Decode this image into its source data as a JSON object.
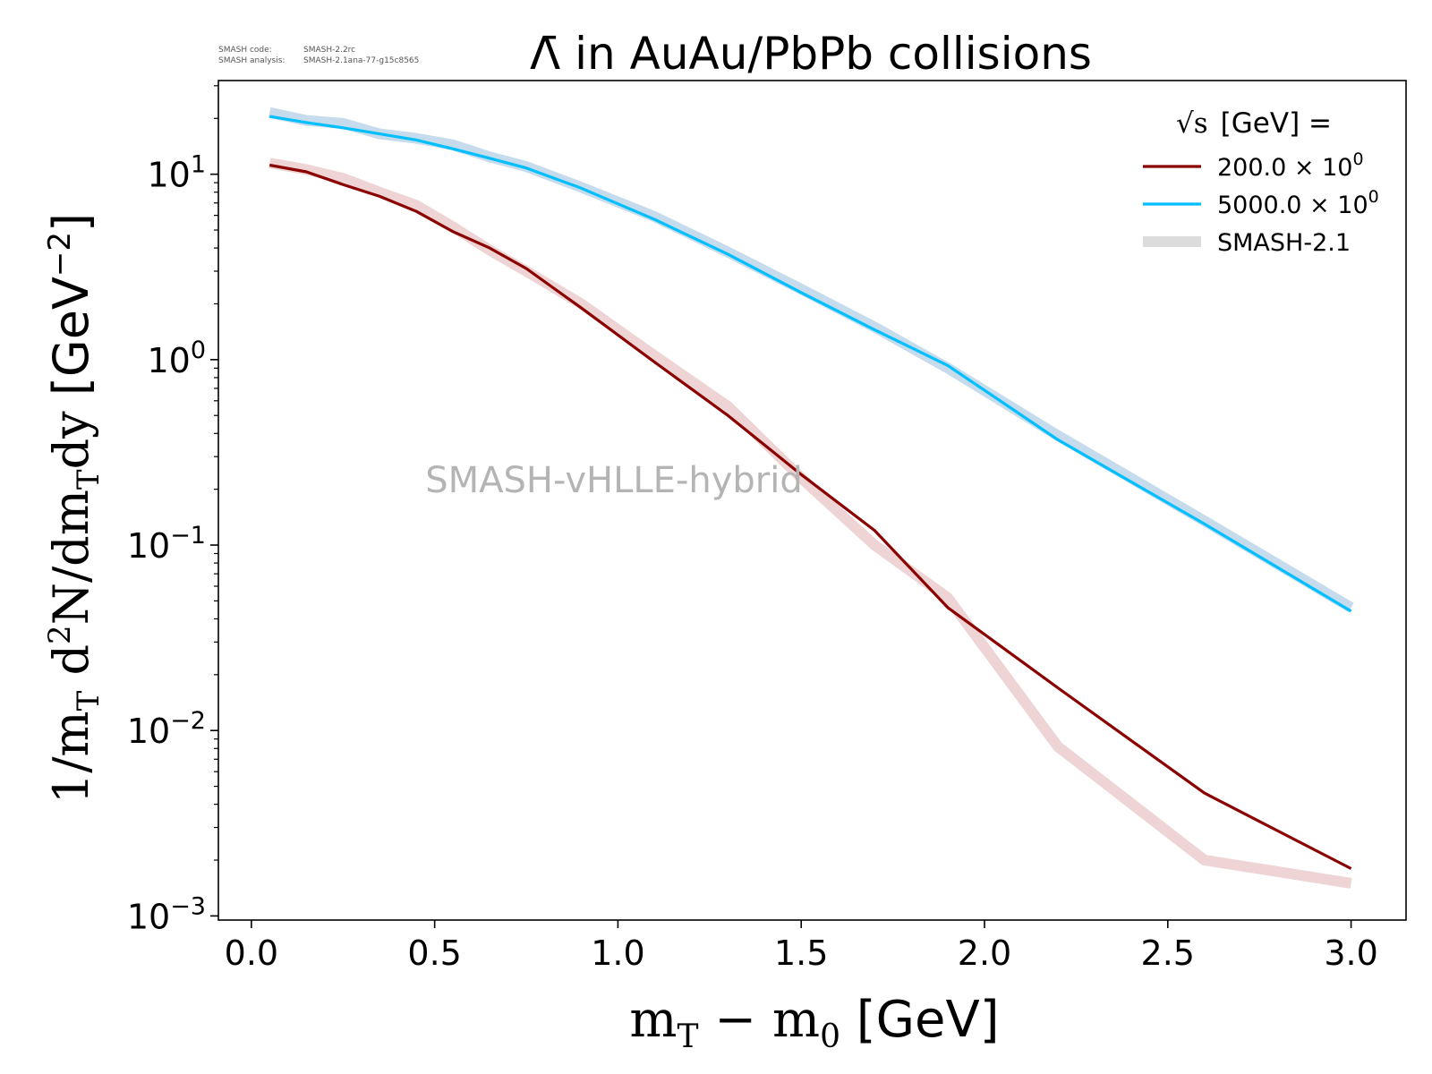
{
  "meta": {
    "code_label": "SMASH code:",
    "code_value": "SMASH-2.2rc",
    "analysis_label": "SMASH analysis:",
    "analysis_value": "SMASH-2.1ana-77-g15c8565"
  },
  "watermark": "SMASH-vHLLE-hybrid",
  "chart_data": {
    "type": "line",
    "title": "Λ̄ in AuAu/PbPb collisions",
    "xlabel": {
      "math": "m",
      "math_sub": "T",
      "minus": " − m",
      "minus_sub": "0",
      "unit": " [GeV]"
    },
    "ylabel": {
      "p1": "1/m",
      "p1_sub": "T",
      "p2": " d",
      "p2_sup": "2",
      "p3": "N/dm",
      "p3_sub": "T",
      "p4": "dy ",
      "unit": "[GeV",
      "unit_sup": "−2",
      "unit_end": "]"
    },
    "xlim": [
      -0.09,
      3.15
    ],
    "ylim": [
      0.00095,
      32
    ],
    "yscale": "log",
    "xticks": [
      0.0,
      0.5,
      1.0,
      1.5,
      2.0,
      2.5,
      3.0
    ],
    "xtick_labels": [
      "0.0",
      "0.5",
      "1.0",
      "1.5",
      "2.0",
      "2.5",
      "3.0"
    ],
    "yticks": [
      {
        "value": 10,
        "base": "10",
        "exp": "1"
      },
      {
        "value": 1,
        "base": "10",
        "exp": "0"
      },
      {
        "value": 0.1,
        "base": "10",
        "exp": "−1"
      },
      {
        "value": 0.01,
        "base": "10",
        "exp": "−2"
      },
      {
        "value": 0.001,
        "base": "10",
        "exp": "−3"
      }
    ],
    "grid": false,
    "legend": {
      "title": "[GeV] =",
      "title_symbol": "√s",
      "placement": "top-right",
      "entries": [
        {
          "label": "200.0 × 10",
          "sup": "0",
          "color": "#8b0000",
          "style": "line"
        },
        {
          "label": "5000.0 × 10",
          "sup": "0",
          "color": "#00bfff",
          "style": "line"
        },
        {
          "label": "SMASH-2.1",
          "color": "#dcdcdc",
          "style": "band"
        }
      ]
    },
    "series": [
      {
        "name": "200.0 × 10^0",
        "color": "#8b0000",
        "x": [
          0.05,
          0.15,
          0.25,
          0.35,
          0.45,
          0.55,
          0.65,
          0.75,
          0.9,
          1.1,
          1.3,
          1.5,
          1.7,
          1.9,
          2.2,
          2.6,
          3.0
        ],
        "y": [
          11.2,
          10.3,
          8.8,
          7.6,
          6.3,
          4.9,
          4.0,
          3.1,
          1.9,
          0.97,
          0.5,
          0.24,
          0.12,
          0.046,
          0.017,
          0.0046,
          0.0018
        ]
      },
      {
        "name": "5000.0 × 10^0",
        "color": "#00bfff",
        "x": [
          0.05,
          0.15,
          0.25,
          0.35,
          0.45,
          0.55,
          0.65,
          0.75,
          0.9,
          1.1,
          1.3,
          1.5,
          1.7,
          1.9,
          2.2,
          2.6,
          3.0
        ],
        "y": [
          20.5,
          19.0,
          17.8,
          16.5,
          15.3,
          13.7,
          12.2,
          10.8,
          8.4,
          5.7,
          3.7,
          2.3,
          1.45,
          0.93,
          0.37,
          0.13,
          0.044
        ]
      },
      {
        "name": "SMASH-2.1",
        "color": "#e8c5c5",
        "band": true,
        "x": [
          0.05,
          0.15,
          0.25,
          0.35,
          0.45,
          0.55,
          0.65,
          0.75,
          0.9,
          1.1,
          1.3,
          1.5,
          1.7,
          1.9,
          2.2,
          2.6,
          3.0
        ],
        "y": [
          11.5,
          10.6,
          9.5,
          8.0,
          6.8,
          5.2,
          3.9,
          3.0,
          2.0,
          1.05,
          0.56,
          0.23,
          0.1,
          0.052,
          0.0082,
          0.002,
          0.0015
        ]
      },
      {
        "name": "SMASH-2.1",
        "color": "#b3cfe6",
        "band": true,
        "x": [
          0.05,
          0.15,
          0.25,
          0.35,
          0.45,
          0.55,
          0.65,
          0.75,
          0.9,
          1.1,
          1.3,
          1.5,
          1.7,
          1.9,
          2.2,
          2.6,
          3.0
        ],
        "y": [
          21.5,
          19.5,
          18.8,
          16.5,
          15.6,
          14.4,
          12.4,
          11.0,
          8.5,
          5.9,
          3.8,
          2.4,
          1.5,
          0.9,
          0.39,
          0.135,
          0.046
        ]
      }
    ]
  }
}
